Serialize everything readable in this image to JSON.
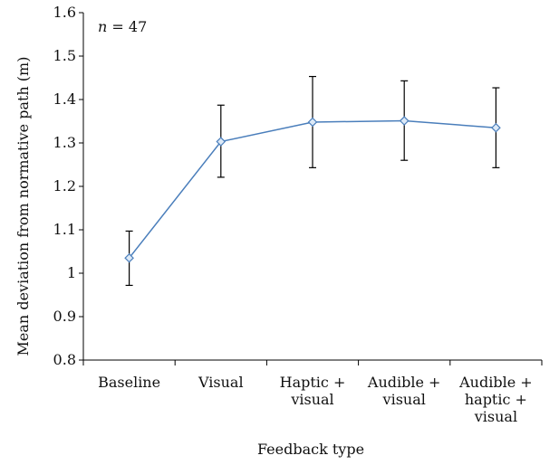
{
  "chart_data": {
    "type": "line",
    "title": "",
    "xlabel": "Feedback type",
    "ylabel": "Mean deviation from normative path (m)",
    "annotation": "n = 47",
    "annotation_parts": {
      "var": "n",
      "rest": " = 47"
    },
    "ylim": [
      0.8,
      1.6
    ],
    "yticks": [
      0.8,
      0.9,
      1,
      1.1,
      1.2,
      1.3,
      1.4,
      1.5,
      1.6
    ],
    "ytick_labels": [
      "0.8",
      "0.9",
      "1",
      "1.1",
      "1.2",
      "1.3",
      "1.4",
      "1.5",
      "1.6"
    ],
    "categories": [
      [
        "Baseline"
      ],
      [
        "Visual"
      ],
      [
        "Haptic +",
        "visual"
      ],
      [
        "Audible +",
        "visual"
      ],
      [
        "Audible +",
        "haptic +",
        "visual"
      ]
    ],
    "series": [
      {
        "values": [
          1.035,
          1.303,
          1.348,
          1.351,
          1.335
        ],
        "error_low": [
          0.972,
          1.221,
          1.243,
          1.26,
          1.243
        ],
        "error_high": [
          1.097,
          1.387,
          1.453,
          1.443,
          1.427
        ],
        "color": "#4a7ebb",
        "marker_fill": "#dce9f7"
      }
    ],
    "grid": false,
    "legend": "none"
  }
}
